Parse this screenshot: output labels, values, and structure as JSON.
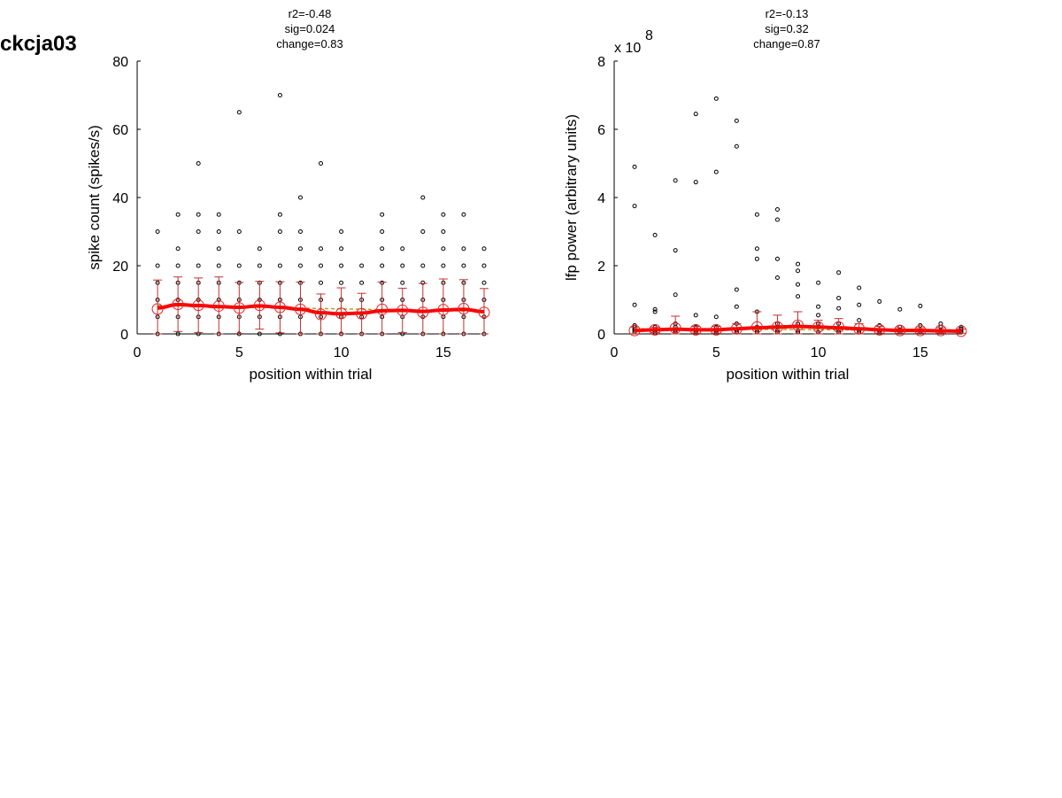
{
  "page_title": "ckcja03",
  "chart_data": [
    {
      "type": "scatter",
      "stats": [
        "r2=-0.48",
        "sig=0.024",
        "change=0.83"
      ],
      "xlabel": "position within trial",
      "ylabel": "spike count (spikes/s)",
      "xlim": [
        0,
        17
      ],
      "ylim": [
        0,
        80
      ],
      "xticks": [
        0,
        5,
        10,
        15
      ],
      "yticks": [
        0,
        20,
        40,
        60,
        80
      ],
      "multiplier_label": "",
      "multiplier_exp": "",
      "raw_points": [
        [
          1,
          0
        ],
        [
          1,
          5
        ],
        [
          1,
          10
        ],
        [
          1,
          15
        ],
        [
          1,
          20
        ],
        [
          1,
          30
        ],
        [
          2,
          0
        ],
        [
          2,
          5
        ],
        [
          2,
          10
        ],
        [
          2,
          15
        ],
        [
          2,
          20
        ],
        [
          2,
          25
        ],
        [
          2,
          35
        ],
        [
          3,
          0
        ],
        [
          3,
          5
        ],
        [
          3,
          10
        ],
        [
          3,
          15
        ],
        [
          3,
          20
        ],
        [
          3,
          30
        ],
        [
          3,
          35
        ],
        [
          3,
          50
        ],
        [
          4,
          0
        ],
        [
          4,
          5
        ],
        [
          4,
          10
        ],
        [
          4,
          15
        ],
        [
          4,
          20
        ],
        [
          4,
          25
        ],
        [
          4,
          30
        ],
        [
          4,
          35
        ],
        [
          5,
          0
        ],
        [
          5,
          5
        ],
        [
          5,
          10
        ],
        [
          5,
          15
        ],
        [
          5,
          20
        ],
        [
          5,
          30
        ],
        [
          5,
          65
        ],
        [
          6,
          0
        ],
        [
          6,
          5
        ],
        [
          6,
          10
        ],
        [
          6,
          15
        ],
        [
          6,
          20
        ],
        [
          6,
          25
        ],
        [
          7,
          0
        ],
        [
          7,
          5
        ],
        [
          7,
          10
        ],
        [
          7,
          15
        ],
        [
          7,
          20
        ],
        [
          7,
          30
        ],
        [
          7,
          35
        ],
        [
          7,
          70
        ],
        [
          8,
          0
        ],
        [
          8,
          5
        ],
        [
          8,
          10
        ],
        [
          8,
          15
        ],
        [
          8,
          20
        ],
        [
          8,
          25
        ],
        [
          8,
          30
        ],
        [
          8,
          40
        ],
        [
          9,
          0
        ],
        [
          9,
          5
        ],
        [
          9,
          10
        ],
        [
          9,
          15
        ],
        [
          9,
          20
        ],
        [
          9,
          25
        ],
        [
          9,
          50
        ],
        [
          10,
          0
        ],
        [
          10,
          5
        ],
        [
          10,
          10
        ],
        [
          10,
          15
        ],
        [
          10,
          20
        ],
        [
          10,
          25
        ],
        [
          10,
          30
        ],
        [
          11,
          0
        ],
        [
          11,
          5
        ],
        [
          11,
          10
        ],
        [
          11,
          15
        ],
        [
          11,
          20
        ],
        [
          12,
          0
        ],
        [
          12,
          5
        ],
        [
          12,
          10
        ],
        [
          12,
          15
        ],
        [
          12,
          20
        ],
        [
          12,
          25
        ],
        [
          12,
          30
        ],
        [
          12,
          35
        ],
        [
          13,
          0
        ],
        [
          13,
          5
        ],
        [
          13,
          10
        ],
        [
          13,
          15
        ],
        [
          13,
          20
        ],
        [
          13,
          25
        ],
        [
          14,
          0
        ],
        [
          14,
          5
        ],
        [
          14,
          10
        ],
        [
          14,
          15
        ],
        [
          14,
          20
        ],
        [
          14,
          30
        ],
        [
          14,
          40
        ],
        [
          15,
          0
        ],
        [
          15,
          5
        ],
        [
          15,
          10
        ],
        [
          15,
          15
        ],
        [
          15,
          20
        ],
        [
          15,
          25
        ],
        [
          15,
          30
        ],
        [
          15,
          35
        ],
        [
          16,
          0
        ],
        [
          16,
          5
        ],
        [
          16,
          10
        ],
        [
          16,
          15
        ],
        [
          16,
          20
        ],
        [
          16,
          25
        ],
        [
          16,
          35
        ],
        [
          17,
          0
        ],
        [
          17,
          5
        ],
        [
          17,
          10
        ],
        [
          17,
          15
        ],
        [
          17,
          20
        ],
        [
          17,
          25
        ]
      ],
      "means": [
        7.3,
        8.7,
        8.4,
        8.2,
        7.6,
        8.4,
        7.8,
        7.2,
        5.7,
        6.0,
        5.9,
        7.2,
        6.9,
        6.3,
        7.1,
        7.4,
        6.3
      ],
      "errors": [
        8.5,
        8.0,
        8.0,
        8.5,
        7.5,
        7.0,
        7.5,
        8.0,
        6.0,
        7.5,
        6.0,
        8.0,
        6.5,
        8.5,
        9.0,
        8.5,
        7.0
      ],
      "smooth": [
        7.6,
        8.6,
        8.3,
        8.0,
        7.8,
        8.2,
        7.8,
        7.2,
        6.2,
        5.9,
        6.1,
        6.8,
        6.9,
        6.6,
        7.0,
        7.2,
        6.5
      ],
      "fit_line": [
        8.3,
        6.6
      ],
      "colors": {
        "points": "#000000",
        "mean": "#e52222",
        "error": "#c03030",
        "smooth": "#ff0000",
        "fit": "#b8a020"
      }
    },
    {
      "type": "scatter",
      "stats": [
        "r2=-0.13",
        "sig=0.32",
        "change=0.87"
      ],
      "xlabel": "position within trial",
      "ylabel": "lfp power (arbitrary units)",
      "xlim": [
        0,
        17
      ],
      "ylim": [
        0,
        8
      ],
      "xticks": [
        0,
        5,
        10,
        15
      ],
      "yticks": [
        0,
        2,
        4,
        6,
        8
      ],
      "multiplier_label": "x 10",
      "multiplier_exp": "8",
      "raw_points": [
        [
          1,
          0.05
        ],
        [
          1,
          0.1
        ],
        [
          1,
          0.15
        ],
        [
          1,
          0.2
        ],
        [
          1,
          0.25
        ],
        [
          1,
          0.85
        ],
        [
          1,
          3.75
        ],
        [
          1,
          4.9
        ],
        [
          2,
          0.05
        ],
        [
          2,
          0.1
        ],
        [
          2,
          0.2
        ],
        [
          2,
          0.65
        ],
        [
          2,
          0.72
        ],
        [
          2,
          2.9
        ],
        [
          3,
          0.05
        ],
        [
          3,
          0.1
        ],
        [
          3,
          0.2
        ],
        [
          3,
          0.3
        ],
        [
          3,
          1.15
        ],
        [
          3,
          2.45
        ],
        [
          3,
          4.5
        ],
        [
          4,
          0.05
        ],
        [
          4,
          0.1
        ],
        [
          4,
          0.2
        ],
        [
          4,
          0.55
        ],
        [
          4,
          4.45
        ],
        [
          4,
          6.45
        ],
        [
          5,
          0.05
        ],
        [
          5,
          0.1
        ],
        [
          5,
          0.2
        ],
        [
          5,
          0.5
        ],
        [
          5,
          4.75
        ],
        [
          5,
          6.9
        ],
        [
          6,
          0.05
        ],
        [
          6,
          0.1
        ],
        [
          6,
          0.3
        ],
        [
          6,
          0.8
        ],
        [
          6,
          1.3
        ],
        [
          6,
          5.5
        ],
        [
          6,
          6.25
        ],
        [
          7,
          0.05
        ],
        [
          7,
          0.1
        ],
        [
          7,
          0.2
        ],
        [
          7,
          0.65
        ],
        [
          7,
          2.2
        ],
        [
          7,
          2.5
        ],
        [
          7,
          3.5
        ],
        [
          8,
          0.05
        ],
        [
          8,
          0.1
        ],
        [
          8,
          0.3
        ],
        [
          8,
          1.65
        ],
        [
          8,
          2.2
        ],
        [
          8,
          3.35
        ],
        [
          8,
          3.65
        ],
        [
          9,
          0.05
        ],
        [
          9,
          0.1
        ],
        [
          9,
          0.3
        ],
        [
          9,
          1.1
        ],
        [
          9,
          1.45
        ],
        [
          9,
          1.85
        ],
        [
          9,
          2.05
        ],
        [
          10,
          0.05
        ],
        [
          10,
          0.2
        ],
        [
          10,
          0.3
        ],
        [
          10,
          0.55
        ],
        [
          10,
          0.8
        ],
        [
          10,
          1.5
        ],
        [
          11,
          0.05
        ],
        [
          11,
          0.1
        ],
        [
          11,
          0.3
        ],
        [
          11,
          0.75
        ],
        [
          11,
          1.05
        ],
        [
          11,
          1.8
        ],
        [
          12,
          0.05
        ],
        [
          12,
          0.1
        ],
        [
          12,
          0.4
        ],
        [
          12,
          0.85
        ],
        [
          12,
          1.35
        ],
        [
          13,
          0.05
        ],
        [
          13,
          0.1
        ],
        [
          13,
          0.25
        ],
        [
          13,
          0.95
        ],
        [
          14,
          0.05
        ],
        [
          14,
          0.1
        ],
        [
          14,
          0.2
        ],
        [
          14,
          0.72
        ],
        [
          15,
          0.05
        ],
        [
          15,
          0.1
        ],
        [
          15,
          0.25
        ],
        [
          15,
          0.82
        ],
        [
          16,
          0.05
        ],
        [
          16,
          0.1
        ],
        [
          16,
          0.2
        ],
        [
          16,
          0.3
        ],
        [
          17,
          0.05
        ],
        [
          17,
          0.1
        ],
        [
          17,
          0.15
        ],
        [
          17,
          0.2
        ]
      ],
      "means": [
        0.1,
        0.12,
        0.17,
        0.12,
        0.12,
        0.15,
        0.2,
        0.2,
        0.25,
        0.2,
        0.2,
        0.15,
        0.12,
        0.1,
        0.1,
        0.1,
        0.08
      ],
      "errors": [
        0.1,
        0.08,
        0.35,
        0.1,
        0.1,
        0.15,
        0.45,
        0.35,
        0.4,
        0.2,
        0.25,
        0.15,
        0.1,
        0.08,
        0.08,
        0.08,
        0.06
      ],
      "smooth": [
        0.1,
        0.12,
        0.14,
        0.12,
        0.12,
        0.15,
        0.18,
        0.2,
        0.22,
        0.2,
        0.18,
        0.15,
        0.12,
        0.1,
        0.1,
        0.09,
        0.08
      ],
      "fit_line": [
        0.15,
        0.1
      ],
      "colors": {
        "points": "#000000",
        "mean": "#e52222",
        "error": "#c03030",
        "smooth": "#ff0000",
        "fit": "#b8a020"
      }
    }
  ]
}
